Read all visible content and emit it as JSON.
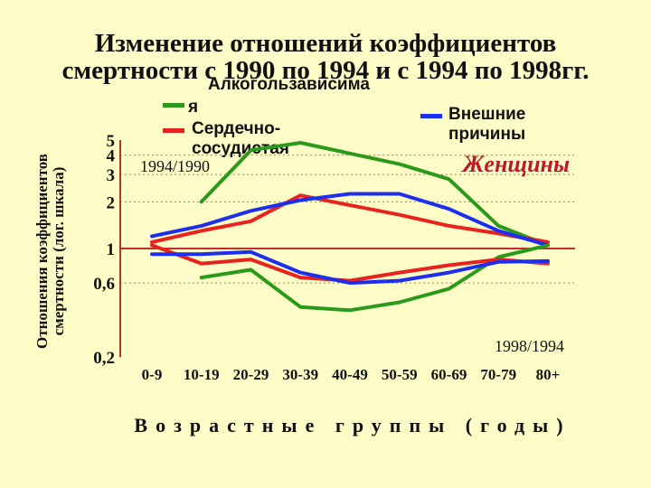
{
  "title_line1": "Изменение отношений коэффициентов",
  "title_line2": "смертности с 1990 по 1994 и с 1994 по 1998гг.",
  "ylabel_line1": "Отношения коэффициентов",
  "ylabel_line2": "смертности (лог. шкала)",
  "legend": {
    "alcohol_line1": "Алкогользависима",
    "alcohol_line2": "я",
    "cardio": "Сердечно-сосудистая",
    "external": "Внешние причины"
  },
  "xlabel": "Возрастные группы (годы)",
  "colors": {
    "alcohol": "#2a9a1a",
    "cardio": "#e8221c",
    "external": "#1c2ef0",
    "axis": "#c03030",
    "background": "#fefdc8"
  },
  "chart_data": {
    "type": "line",
    "yscale": "log",
    "categories": [
      "0-9",
      "10-19",
      "20-29",
      "30-39",
      "40-49",
      "50-59",
      "60-69",
      "70-79",
      "80+"
    ],
    "y_tick_labels": [
      "0,2",
      "0,6",
      "1",
      "2",
      "3",
      "4",
      "5"
    ],
    "y_ticks": [
      0.2,
      0.6,
      1,
      2,
      3,
      4,
      5
    ],
    "ylim": [
      0.2,
      5
    ],
    "grid": true,
    "panel_labels": {
      "women": "Женщины",
      "upper": "1994/1990",
      "lower": "1998/1994"
    },
    "series": [
      {
        "name": "Алкогользависимая",
        "group": "1994/1990",
        "color_key": "alcohol",
        "values": [
          null,
          2.0,
          4.3,
          4.8,
          4.1,
          3.5,
          2.8,
          1.4,
          1.05
        ]
      },
      {
        "name": "Сердечно-сосудистая",
        "group": "1994/1990",
        "color_key": "cardio",
        "values": [
          1.1,
          1.3,
          1.5,
          2.2,
          1.9,
          1.65,
          1.4,
          1.25,
          1.1
        ]
      },
      {
        "name": "Внешние причины",
        "group": "1994/1990",
        "color_key": "external",
        "values": [
          1.2,
          1.4,
          1.75,
          2.05,
          2.25,
          2.25,
          1.8,
          1.3,
          1.05
        ]
      },
      {
        "name": "Алкогользависимая",
        "group": "1998/1994",
        "color_key": "alcohol",
        "values": [
          null,
          0.65,
          0.73,
          0.42,
          0.4,
          0.45,
          0.55,
          0.88,
          1.05
        ]
      },
      {
        "name": "Сердечно-сосудистая",
        "group": "1998/1994",
        "color_key": "cardio",
        "values": [
          1.05,
          0.8,
          0.85,
          0.65,
          0.62,
          0.7,
          0.78,
          0.85,
          0.8
        ]
      },
      {
        "name": "Внешние причины",
        "group": "1998/1994",
        "color_key": "external",
        "values": [
          0.92,
          0.92,
          0.95,
          0.7,
          0.6,
          0.62,
          0.7,
          0.82,
          0.83
        ]
      }
    ]
  }
}
